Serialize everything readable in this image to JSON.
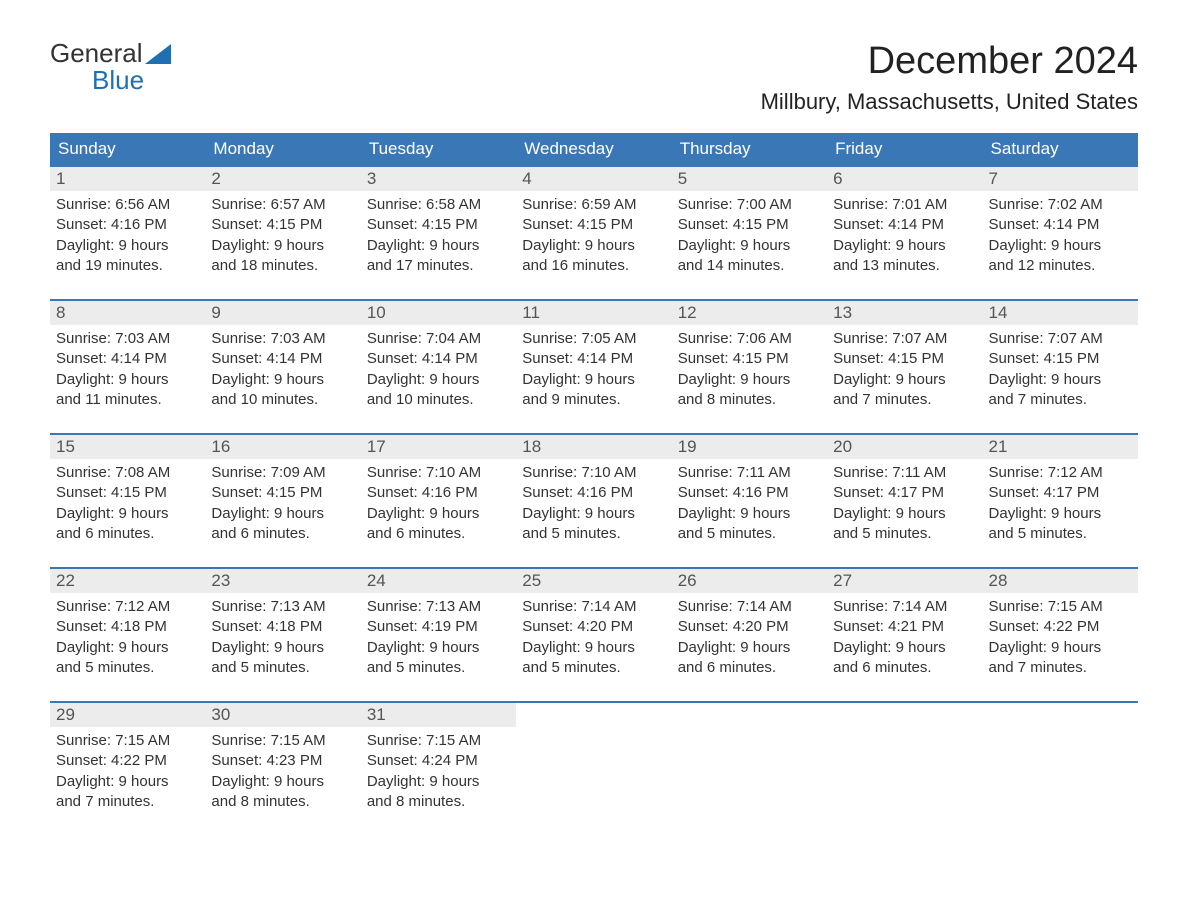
{
  "logo": {
    "word1": "General",
    "word2": "Blue"
  },
  "title": "December 2024",
  "location": "Millbury, Massachusetts, United States",
  "colors": {
    "header_bg": "#3a77b7",
    "header_text": "#ffffff",
    "daynum_bg": "#ececec",
    "border_top": "#3a77b7",
    "text": "#333333",
    "logo_blue": "#1f6fb2",
    "page_bg": "#ffffff"
  },
  "weekdays": [
    "Sunday",
    "Monday",
    "Tuesday",
    "Wednesday",
    "Thursday",
    "Friday",
    "Saturday"
  ],
  "weeks": [
    [
      {
        "day": "1",
        "sunrise": "Sunrise: 6:56 AM",
        "sunset": "Sunset: 4:16 PM",
        "daylight1": "Daylight: 9 hours",
        "daylight2": "and 19 minutes."
      },
      {
        "day": "2",
        "sunrise": "Sunrise: 6:57 AM",
        "sunset": "Sunset: 4:15 PM",
        "daylight1": "Daylight: 9 hours",
        "daylight2": "and 18 minutes."
      },
      {
        "day": "3",
        "sunrise": "Sunrise: 6:58 AM",
        "sunset": "Sunset: 4:15 PM",
        "daylight1": "Daylight: 9 hours",
        "daylight2": "and 17 minutes."
      },
      {
        "day": "4",
        "sunrise": "Sunrise: 6:59 AM",
        "sunset": "Sunset: 4:15 PM",
        "daylight1": "Daylight: 9 hours",
        "daylight2": "and 16 minutes."
      },
      {
        "day": "5",
        "sunrise": "Sunrise: 7:00 AM",
        "sunset": "Sunset: 4:15 PM",
        "daylight1": "Daylight: 9 hours",
        "daylight2": "and 14 minutes."
      },
      {
        "day": "6",
        "sunrise": "Sunrise: 7:01 AM",
        "sunset": "Sunset: 4:14 PM",
        "daylight1": "Daylight: 9 hours",
        "daylight2": "and 13 minutes."
      },
      {
        "day": "7",
        "sunrise": "Sunrise: 7:02 AM",
        "sunset": "Sunset: 4:14 PM",
        "daylight1": "Daylight: 9 hours",
        "daylight2": "and 12 minutes."
      }
    ],
    [
      {
        "day": "8",
        "sunrise": "Sunrise: 7:03 AM",
        "sunset": "Sunset: 4:14 PM",
        "daylight1": "Daylight: 9 hours",
        "daylight2": "and 11 minutes."
      },
      {
        "day": "9",
        "sunrise": "Sunrise: 7:03 AM",
        "sunset": "Sunset: 4:14 PM",
        "daylight1": "Daylight: 9 hours",
        "daylight2": "and 10 minutes."
      },
      {
        "day": "10",
        "sunrise": "Sunrise: 7:04 AM",
        "sunset": "Sunset: 4:14 PM",
        "daylight1": "Daylight: 9 hours",
        "daylight2": "and 10 minutes."
      },
      {
        "day": "11",
        "sunrise": "Sunrise: 7:05 AM",
        "sunset": "Sunset: 4:14 PM",
        "daylight1": "Daylight: 9 hours",
        "daylight2": "and 9 minutes."
      },
      {
        "day": "12",
        "sunrise": "Sunrise: 7:06 AM",
        "sunset": "Sunset: 4:15 PM",
        "daylight1": "Daylight: 9 hours",
        "daylight2": "and 8 minutes."
      },
      {
        "day": "13",
        "sunrise": "Sunrise: 7:07 AM",
        "sunset": "Sunset: 4:15 PM",
        "daylight1": "Daylight: 9 hours",
        "daylight2": "and 7 minutes."
      },
      {
        "day": "14",
        "sunrise": "Sunrise: 7:07 AM",
        "sunset": "Sunset: 4:15 PM",
        "daylight1": "Daylight: 9 hours",
        "daylight2": "and 7 minutes."
      }
    ],
    [
      {
        "day": "15",
        "sunrise": "Sunrise: 7:08 AM",
        "sunset": "Sunset: 4:15 PM",
        "daylight1": "Daylight: 9 hours",
        "daylight2": "and 6 minutes."
      },
      {
        "day": "16",
        "sunrise": "Sunrise: 7:09 AM",
        "sunset": "Sunset: 4:15 PM",
        "daylight1": "Daylight: 9 hours",
        "daylight2": "and 6 minutes."
      },
      {
        "day": "17",
        "sunrise": "Sunrise: 7:10 AM",
        "sunset": "Sunset: 4:16 PM",
        "daylight1": "Daylight: 9 hours",
        "daylight2": "and 6 minutes."
      },
      {
        "day": "18",
        "sunrise": "Sunrise: 7:10 AM",
        "sunset": "Sunset: 4:16 PM",
        "daylight1": "Daylight: 9 hours",
        "daylight2": "and 5 minutes."
      },
      {
        "day": "19",
        "sunrise": "Sunrise: 7:11 AM",
        "sunset": "Sunset: 4:16 PM",
        "daylight1": "Daylight: 9 hours",
        "daylight2": "and 5 minutes."
      },
      {
        "day": "20",
        "sunrise": "Sunrise: 7:11 AM",
        "sunset": "Sunset: 4:17 PM",
        "daylight1": "Daylight: 9 hours",
        "daylight2": "and 5 minutes."
      },
      {
        "day": "21",
        "sunrise": "Sunrise: 7:12 AM",
        "sunset": "Sunset: 4:17 PM",
        "daylight1": "Daylight: 9 hours",
        "daylight2": "and 5 minutes."
      }
    ],
    [
      {
        "day": "22",
        "sunrise": "Sunrise: 7:12 AM",
        "sunset": "Sunset: 4:18 PM",
        "daylight1": "Daylight: 9 hours",
        "daylight2": "and 5 minutes."
      },
      {
        "day": "23",
        "sunrise": "Sunrise: 7:13 AM",
        "sunset": "Sunset: 4:18 PM",
        "daylight1": "Daylight: 9 hours",
        "daylight2": "and 5 minutes."
      },
      {
        "day": "24",
        "sunrise": "Sunrise: 7:13 AM",
        "sunset": "Sunset: 4:19 PM",
        "daylight1": "Daylight: 9 hours",
        "daylight2": "and 5 minutes."
      },
      {
        "day": "25",
        "sunrise": "Sunrise: 7:14 AM",
        "sunset": "Sunset: 4:20 PM",
        "daylight1": "Daylight: 9 hours",
        "daylight2": "and 5 minutes."
      },
      {
        "day": "26",
        "sunrise": "Sunrise: 7:14 AM",
        "sunset": "Sunset: 4:20 PM",
        "daylight1": "Daylight: 9 hours",
        "daylight2": "and 6 minutes."
      },
      {
        "day": "27",
        "sunrise": "Sunrise: 7:14 AM",
        "sunset": "Sunset: 4:21 PM",
        "daylight1": "Daylight: 9 hours",
        "daylight2": "and 6 minutes."
      },
      {
        "day": "28",
        "sunrise": "Sunrise: 7:15 AM",
        "sunset": "Sunset: 4:22 PM",
        "daylight1": "Daylight: 9 hours",
        "daylight2": "and 7 minutes."
      }
    ],
    [
      {
        "day": "29",
        "sunrise": "Sunrise: 7:15 AM",
        "sunset": "Sunset: 4:22 PM",
        "daylight1": "Daylight: 9 hours",
        "daylight2": "and 7 minutes."
      },
      {
        "day": "30",
        "sunrise": "Sunrise: 7:15 AM",
        "sunset": "Sunset: 4:23 PM",
        "daylight1": "Daylight: 9 hours",
        "daylight2": "and 8 minutes."
      },
      {
        "day": "31",
        "sunrise": "Sunrise: 7:15 AM",
        "sunset": "Sunset: 4:24 PM",
        "daylight1": "Daylight: 9 hours",
        "daylight2": "and 8 minutes."
      },
      null,
      null,
      null,
      null
    ]
  ]
}
